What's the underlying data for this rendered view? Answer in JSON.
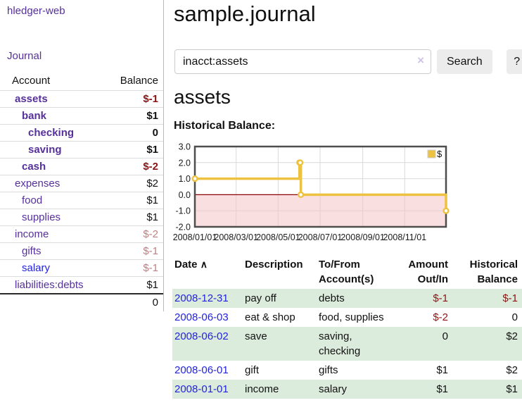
{
  "app": {
    "title": "hledger-web"
  },
  "sidebar": {
    "journal_link": "Journal",
    "table": {
      "account_header": "Account",
      "balance_header": "Balance",
      "accounts": [
        {
          "name": "assets",
          "level": 1,
          "bold": true,
          "balance": "$-1",
          "negative": true
        },
        {
          "name": "bank",
          "level": 2,
          "bold": true,
          "balance": "$1",
          "negative": false
        },
        {
          "name": "checking",
          "level": 3,
          "bold": true,
          "balance": "0",
          "negative": false
        },
        {
          "name": "saving",
          "level": 3,
          "bold": true,
          "balance": "$1",
          "negative": false
        },
        {
          "name": "cash",
          "level": 2,
          "bold": true,
          "balance": "$-2",
          "negative": true
        },
        {
          "name": "expenses",
          "level": 1,
          "bold": false,
          "balance": "$2",
          "negative": false
        },
        {
          "name": "food",
          "level": 2,
          "bold": false,
          "balance": "$1",
          "negative": false
        },
        {
          "name": "supplies",
          "level": 2,
          "bold": false,
          "balance": "$1",
          "negative": false
        },
        {
          "name": "income",
          "level": 1,
          "bold": false,
          "balance": "$-2",
          "negative": true
        },
        {
          "name": "gifts",
          "level": 2,
          "bold": false,
          "balance": "$-1",
          "negative": true
        },
        {
          "name": "salary",
          "level": 2,
          "bold": false,
          "balance": "$-1",
          "negative": true,
          "blue": true
        },
        {
          "name": "liabilities:debts",
          "level": 1,
          "bold": false,
          "balance": "$1",
          "negative": false
        }
      ],
      "total": "0"
    }
  },
  "main": {
    "title": "sample.journal",
    "search": {
      "value": "inacct:assets",
      "clear_icon": "×",
      "button_label": "Search",
      "help_label": "?"
    },
    "account_heading": "assets",
    "chart_heading": "Historical Balance:"
  },
  "chart_data": {
    "type": "line",
    "step": true,
    "title": "Historical Balance:",
    "legend": "$",
    "legend_position": "top-right",
    "grid": true,
    "ylim": [
      -2,
      3
    ],
    "xlim_days": [
      0,
      365
    ],
    "y_ticks": [
      {
        "value": 3,
        "label": "3.0"
      },
      {
        "value": 2,
        "label": "2.0"
      },
      {
        "value": 1,
        "label": "1.0"
      },
      {
        "value": 0,
        "label": "0.0"
      },
      {
        "value": -1,
        "label": "-1.0"
      },
      {
        "value": -2,
        "label": "-2.0"
      }
    ],
    "x_ticks": [
      {
        "day": 0,
        "label": "2008/01/01"
      },
      {
        "day": 60,
        "label": "2008/03/01"
      },
      {
        "day": 121,
        "label": "2008/05/01"
      },
      {
        "day": 182,
        "label": "2008/07/01"
      },
      {
        "day": 244,
        "label": "2008/09/01"
      },
      {
        "day": 305,
        "label": "2008/11/01"
      }
    ],
    "series": [
      {
        "name": "$",
        "points": [
          {
            "date": "2008-01-01",
            "day": 0,
            "value": 1
          },
          {
            "date": "2008-06-01",
            "day": 152,
            "value": 2
          },
          {
            "date": "2008-06-02",
            "day": 153,
            "value": 2
          },
          {
            "date": "2008-06-03",
            "day": 154,
            "value": 0
          },
          {
            "date": "2008-12-31",
            "day": 365,
            "value": -1
          }
        ]
      }
    ],
    "colors": {
      "series": "#edc240",
      "negative_region": "#f4c4c4",
      "zero_line": "#8b0000",
      "grid": "#d9d9d9",
      "border": "#4d4d4d"
    }
  },
  "register": {
    "headers": [
      "Date",
      "Description",
      "To/From Account(s)",
      "Amount Out/In",
      "Historical Balance"
    ],
    "sort_icon": "∧",
    "rows": [
      {
        "date": "2008-12-31",
        "description": "pay off",
        "accounts": "debts",
        "amount": "$-1",
        "balance": "$-1",
        "amount_negative": true,
        "balance_negative": true
      },
      {
        "date": "2008-06-03",
        "description": "eat & shop",
        "accounts": "food, supplies",
        "amount": "$-2",
        "balance": "0",
        "amount_negative": true,
        "balance_negative": false
      },
      {
        "date": "2008-06-02",
        "description": "save",
        "accounts": "saving, checking",
        "amount": "0",
        "balance": "$2",
        "amount_negative": false,
        "balance_negative": false
      },
      {
        "date": "2008-06-01",
        "description": "gift",
        "accounts": "gifts",
        "amount": "$1",
        "balance": "$2",
        "amount_negative": false,
        "balance_negative": false
      },
      {
        "date": "2008-01-01",
        "description": "income",
        "accounts": "salary",
        "amount": "$1",
        "balance": "$1",
        "amount_negative": false,
        "balance_negative": false
      }
    ]
  },
  "colors": {
    "link_purple": "#56309b",
    "link_blue": "#2323dd",
    "negative_strong": "#8b1414",
    "negative_soft": "#bf7f7f",
    "row_stripe_green": "#dcecdc",
    "chart_series_yellow": "#edc240",
    "chart_negative_pink": "#f9dcdc",
    "chart_zero_line_red": "#8b0000"
  }
}
